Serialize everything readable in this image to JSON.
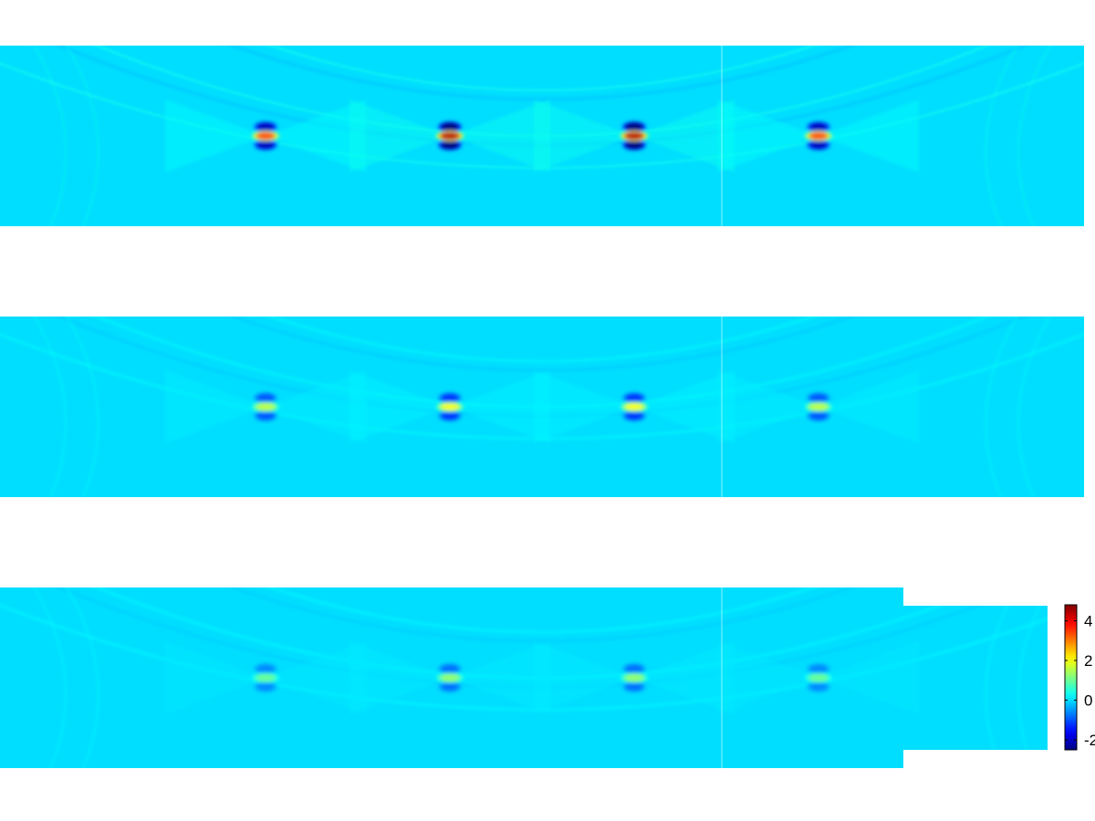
{
  "chart_data": {
    "type": "heatmap",
    "colormap": "jet",
    "background_value": 0,
    "panels": [
      {
        "panel": 1,
        "blobs": [
          {
            "x": 0.245,
            "y": 0.5,
            "peak": 3.4
          },
          {
            "x": 0.415,
            "y": 0.5,
            "peak": 4.4
          },
          {
            "x": 0.585,
            "y": 0.5,
            "peak": 4.4
          },
          {
            "x": 0.755,
            "y": 0.5,
            "peak": 3.4
          }
        ],
        "arcs": 0.25
      },
      {
        "panel": 2,
        "blobs": [
          {
            "x": 0.245,
            "y": 0.5,
            "peak": 1.6
          },
          {
            "x": 0.415,
            "y": 0.5,
            "peak": 2.0
          },
          {
            "x": 0.585,
            "y": 0.5,
            "peak": 2.0
          },
          {
            "x": 0.755,
            "y": 0.5,
            "peak": 1.6
          }
        ],
        "arcs": 0.18
      },
      {
        "panel": 3,
        "blobs": [
          {
            "x": 0.245,
            "y": 0.5,
            "peak": 1.0
          },
          {
            "x": 0.415,
            "y": 0.5,
            "peak": 1.3
          },
          {
            "x": 0.585,
            "y": 0.5,
            "peak": 1.3
          },
          {
            "x": 0.755,
            "y": 0.5,
            "peak": 1.0
          }
        ],
        "arcs": 0.15
      }
    ],
    "colorbar": {
      "range": [
        -2.5,
        4.8
      ],
      "ticks": [
        4,
        2,
        0,
        -2
      ],
      "tick_labels": [
        "4",
        "2",
        "0",
        "-2"
      ]
    }
  }
}
